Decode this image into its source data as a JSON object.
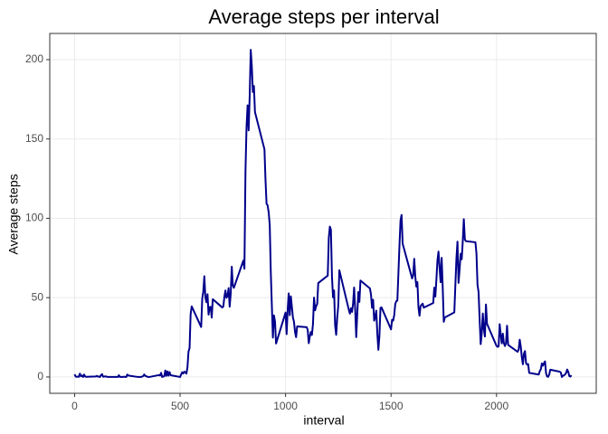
{
  "chart_data": {
    "type": "line",
    "title": "Average steps per interval",
    "x_label": "interval",
    "y_label": "Average steps",
    "x": [
      0,
      5,
      10,
      15,
      20,
      25,
      30,
      35,
      40,
      45,
      50,
      55,
      100,
      105,
      110,
      115,
      120,
      125,
      130,
      135,
      140,
      145,
      150,
      155,
      200,
      205,
      210,
      215,
      220,
      225,
      230,
      235,
      240,
      245,
      250,
      255,
      300,
      305,
      310,
      315,
      320,
      325,
      330,
      335,
      340,
      345,
      350,
      355,
      400,
      405,
      410,
      415,
      420,
      425,
      430,
      435,
      440,
      445,
      450,
      455,
      500,
      505,
      510,
      515,
      520,
      525,
      530,
      535,
      540,
      545,
      550,
      555,
      600,
      605,
      610,
      615,
      620,
      625,
      630,
      635,
      640,
      645,
      650,
      655,
      700,
      705,
      710,
      715,
      720,
      725,
      730,
      735,
      740,
      745,
      750,
      755,
      800,
      805,
      810,
      815,
      820,
      825,
      830,
      835,
      840,
      845,
      850,
      855,
      900,
      905,
      910,
      915,
      920,
      925,
      930,
      935,
      940,
      945,
      950,
      955,
      1000,
      1005,
      1010,
      1015,
      1020,
      1025,
      1030,
      1035,
      1040,
      1045,
      1050,
      1055,
      1100,
      1105,
      1110,
      1115,
      1120,
      1125,
      1130,
      1135,
      1140,
      1145,
      1150,
      1155,
      1200,
      1205,
      1210,
      1215,
      1220,
      1225,
      1230,
      1235,
      1240,
      1245,
      1250,
      1255,
      1300,
      1305,
      1310,
      1315,
      1320,
      1325,
      1330,
      1335,
      1340,
      1345,
      1350,
      1355,
      1400,
      1405,
      1410,
      1415,
      1420,
      1425,
      1430,
      1435,
      1440,
      1445,
      1450,
      1455,
      1500,
      1505,
      1510,
      1515,
      1520,
      1525,
      1530,
      1535,
      1540,
      1545,
      1550,
      1555,
      1600,
      1605,
      1610,
      1615,
      1620,
      1625,
      1630,
      1635,
      1640,
      1645,
      1650,
      1655,
      1700,
      1705,
      1710,
      1715,
      1720,
      1725,
      1730,
      1735,
      1740,
      1745,
      1750,
      1755,
      1800,
      1805,
      1810,
      1815,
      1820,
      1825,
      1830,
      1835,
      1840,
      1845,
      1850,
      1855,
      1900,
      1905,
      1910,
      1915,
      1920,
      1925,
      1930,
      1935,
      1940,
      1945,
      1950,
      1955,
      2000,
      2005,
      2010,
      2015,
      2020,
      2025,
      2030,
      2035,
      2040,
      2045,
      2050,
      2055,
      2100,
      2105,
      2110,
      2115,
      2120,
      2125,
      2130,
      2135,
      2140,
      2145,
      2150,
      2155,
      2200,
      2205,
      2210,
      2215,
      2220,
      2225,
      2230,
      2235,
      2240,
      2245,
      2250,
      2255,
      2300,
      2305,
      2310,
      2315,
      2320,
      2325,
      2330,
      2335,
      2340,
      2345,
      2350,
      2355
    ],
    "series": [
      {
        "name": "Average steps",
        "color": "#00008b",
        "values": [
          1.7,
          0.3,
          0.1,
          0.2,
          0.1,
          2.1,
          0.5,
          0.9,
          0,
          1.5,
          0.3,
          0.1,
          0.3,
          0.7,
          0.2,
          0.3,
          0,
          1.1,
          1.8,
          0.2,
          0.2,
          0.4,
          0.3,
          0,
          0,
          0,
          1.1,
          0,
          0,
          0.1,
          0,
          0.2,
          0,
          0,
          1.5,
          0.9,
          0,
          0,
          0,
          0,
          0.2,
          0.6,
          1.6,
          0.6,
          0.5,
          0.1,
          0,
          0,
          1.2,
          0.9,
          2.6,
          0,
          0.3,
          0.4,
          4.1,
          0.7,
          3.5,
          0.8,
          3.1,
          1.1,
          0,
          1.6,
          3.0,
          2.2,
          3.3,
          3.0,
          2.1,
          6.1,
          16.0,
          18.3,
          39.5,
          44.5,
          31.5,
          49.3,
          53.8,
          63.5,
          50.0,
          47.1,
          52.2,
          39.3,
          44.0,
          44.2,
          37.4,
          49.0,
          43.8,
          44.4,
          50.5,
          54.5,
          49.9,
          51.0,
          56.0,
          44.3,
          52.3,
          69.5,
          57.8,
          56.2,
          73.4,
          68.2,
          129.4,
          157.5,
          171.2,
          155.4,
          177.3,
          206.2,
          195.9,
          179.6,
          183.4,
          167.0,
          143.5,
          124.0,
          109.1,
          108.1,
          103.7,
          95.9,
          66.2,
          45.2,
          24.8,
          38.8,
          35.0,
          21.1,
          40.6,
          27.0,
          42.4,
          52.7,
          38.9,
          50.8,
          44.3,
          37.4,
          34.7,
          28.3,
          25.1,
          31.9,
          31.4,
          29.7,
          21.3,
          25.5,
          28.4,
          26.5,
          33.4,
          50.0,
          42.0,
          44.6,
          46.0,
          59.2,
          63.9,
          87.7,
          94.8,
          92.8,
          63.4,
          50.2,
          54.5,
          32.4,
          26.5,
          37.7,
          45.1,
          67.3,
          42.3,
          39.9,
          43.3,
          41.0,
          46.2,
          56.4,
          42.8,
          25.1,
          40.0,
          53.5,
          47.3,
          60.8,
          55.8,
          52.0,
          43.6,
          48.7,
          35.5,
          37.5,
          41.8,
          27.5,
          17.1,
          26.1,
          43.6,
          43.8,
          30.0,
          36.1,
          35.5,
          38.8,
          46.0,
          47.8,
          48.1,
          65.3,
          82.9,
          98.7,
          102.1,
          84.0,
          62.1,
          64.1,
          74.5,
          63.2,
          56.9,
          59.8,
          43.9,
          38.6,
          44.7,
          45.5,
          46.2,
          43.7,
          46.6,
          56.3,
          50.7,
          61.2,
          73.4,
          79.0,
          68.9,
          59.7,
          75.1,
          56.5,
          34.8,
          37.5,
          40.7,
          58.0,
          74.7,
          85.3,
          59.3,
          67.8,
          77.7,
          74.2,
          85.3,
          99.5,
          86.6,
          85.6,
          84.9,
          77.8,
          58.0,
          53.4,
          36.3,
          20.7,
          27.4,
          40.0,
          30.2,
          25.5,
          45.7,
          33.5,
          19.6,
          19.0,
          19.3,
          33.3,
          26.8,
          21.2,
          27.3,
          21.3,
          19.5,
          21.3,
          32.3,
          20.2,
          15.9,
          17.2,
          23.5,
          19.2,
          12.5,
          8.0,
          14.7,
          16.3,
          8.7,
          7.8,
          8.1,
          2.6,
          1.5,
          3.7,
          4.8,
          8.5,
          7.1,
          8.7,
          9.8,
          2.2,
          0.3,
          0.1,
          1.6,
          4.6,
          3.3,
          2.8,
          0,
          0.8,
          1.0,
          1.6,
          2.6,
          4.7,
          3.3,
          0.6,
          0.2,
          1.1
        ]
      }
    ],
    "xlim": [
      -117.75,
      2472.75
    ],
    "xticks": [
      0,
      500,
      1000,
      1500,
      2000
    ],
    "ylim": [
      -10.3,
      216.5
    ],
    "yticks": [
      0,
      50,
      100,
      150,
      200
    ],
    "grid": true
  }
}
